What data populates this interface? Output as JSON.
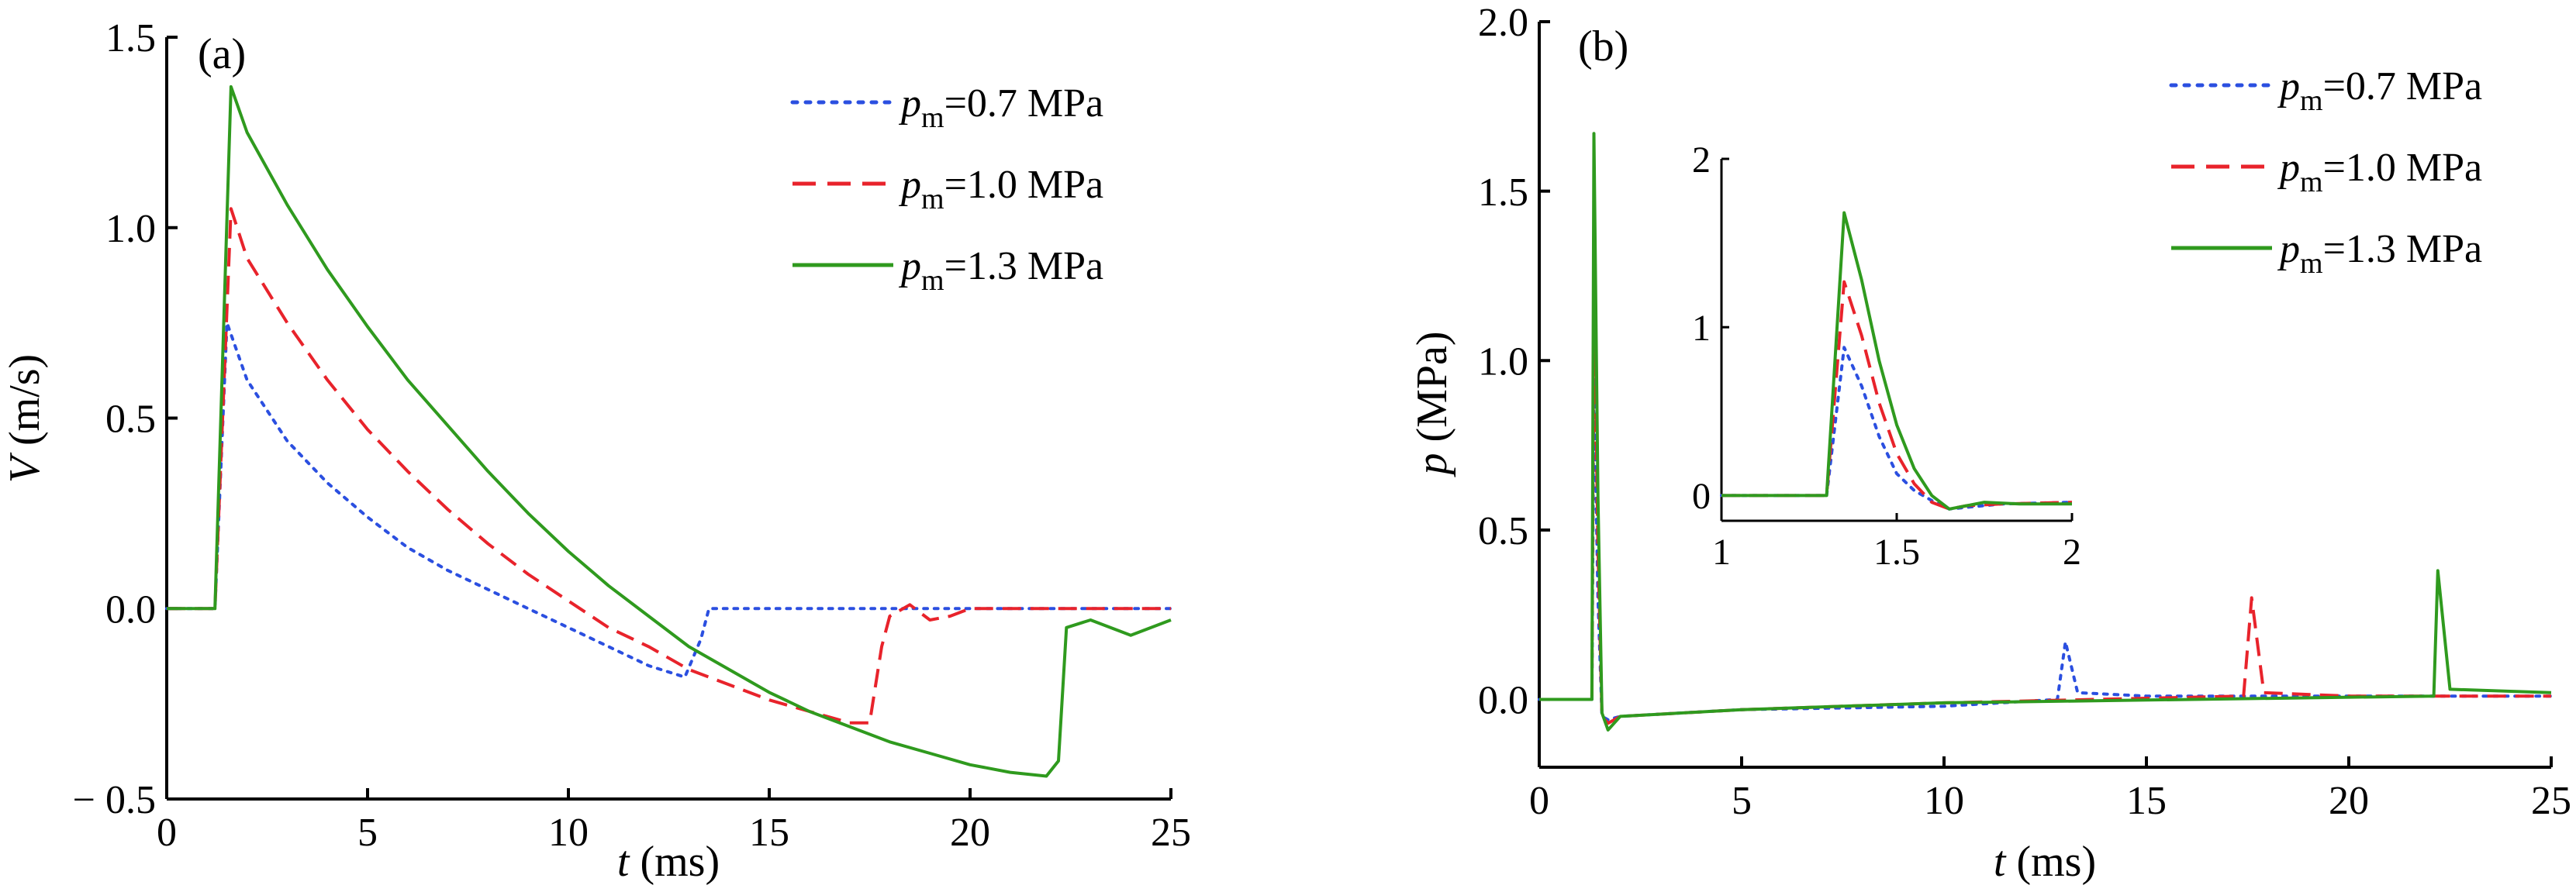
{
  "chart_data": [
    {
      "type": "line",
      "panel_label": "(a)",
      "xlabel": {
        "var": "t",
        "unit": "(ms)"
      },
      "ylabel": {
        "var": "V",
        "unit": "(m/s)"
      },
      "xlim": [
        0,
        25
      ],
      "ylim": [
        -0.5,
        1.5
      ],
      "x_ticks": [
        0,
        5,
        10,
        15,
        20,
        25
      ],
      "x_tick_labels": [
        "0",
        "5",
        "10",
        "15",
        "20",
        "25"
      ],
      "y_ticks": [
        -0.5,
        0.0,
        0.5,
        1.0,
        1.5
      ],
      "y_tick_labels": [
        "− 0.5",
        "0.0",
        "0.5",
        "1.0",
        "1.5"
      ],
      "legend_position": "top-right",
      "series": [
        {
          "name": {
            "var": "p",
            "sub": "m",
            "text": "=0.7 MPa"
          },
          "color": "#2b4fe0",
          "style": "dotted",
          "points": [
            [
              0,
              0
            ],
            [
              1.2,
              0
            ],
            [
              1.5,
              0.75
            ],
            [
              2,
              0.6
            ],
            [
              3,
              0.44
            ],
            [
              4,
              0.33
            ],
            [
              5,
              0.24
            ],
            [
              6,
              0.16
            ],
            [
              7,
              0.1
            ],
            [
              8,
              0.05
            ],
            [
              9,
              0
            ],
            [
              10,
              -0.05
            ],
            [
              11,
              -0.1
            ],
            [
              12,
              -0.15
            ],
            [
              12.9,
              -0.18
            ],
            [
              13.3,
              -0.08
            ],
            [
              13.5,
              0
            ],
            [
              25,
              0
            ]
          ]
        },
        {
          "name": {
            "var": "p",
            "sub": "m",
            "text": "=1.0 MPa"
          },
          "color": "#e8232b",
          "style": "dashed",
          "points": [
            [
              0,
              0
            ],
            [
              1.2,
              0
            ],
            [
              1.6,
              1.05
            ],
            [
              2,
              0.92
            ],
            [
              3,
              0.75
            ],
            [
              4,
              0.6
            ],
            [
              5,
              0.47
            ],
            [
              6,
              0.36
            ],
            [
              7,
              0.26
            ],
            [
              8,
              0.17
            ],
            [
              9,
              0.09
            ],
            [
              10,
              0.02
            ],
            [
              11,
              -0.05
            ],
            [
              12,
              -0.1
            ],
            [
              13,
              -0.16
            ],
            [
              14,
              -0.2
            ],
            [
              15,
              -0.24
            ],
            [
              16,
              -0.27
            ],
            [
              17,
              -0.3
            ],
            [
              17.5,
              -0.3
            ],
            [
              17.8,
              -0.1
            ],
            [
              18,
              -0.02
            ],
            [
              18.5,
              0.01
            ],
            [
              19,
              -0.03
            ],
            [
              19.5,
              -0.02
            ],
            [
              20,
              0
            ],
            [
              25,
              0
            ]
          ]
        },
        {
          "name": {
            "var": "p",
            "sub": "m",
            "text": "=1.3 MPa"
          },
          "color": "#2f9a1e",
          "style": "solid",
          "points": [
            [
              0,
              0
            ],
            [
              1.2,
              0
            ],
            [
              1.6,
              1.37
            ],
            [
              2,
              1.25
            ],
            [
              3,
              1.06
            ],
            [
              4,
              0.89
            ],
            [
              5,
              0.74
            ],
            [
              6,
              0.6
            ],
            [
              7,
              0.48
            ],
            [
              8,
              0.36
            ],
            [
              9,
              0.25
            ],
            [
              10,
              0.15
            ],
            [
              11,
              0.06
            ],
            [
              12,
              -0.02
            ],
            [
              13,
              -0.1
            ],
            [
              14,
              -0.16
            ],
            [
              15,
              -0.22
            ],
            [
              16,
              -0.27
            ],
            [
              17,
              -0.31
            ],
            [
              18,
              -0.35
            ],
            [
              19,
              -0.38
            ],
            [
              20,
              -0.41
            ],
            [
              21,
              -0.43
            ],
            [
              21.9,
              -0.44
            ],
            [
              22.2,
              -0.4
            ],
            [
              22.4,
              -0.05
            ],
            [
              23,
              -0.03
            ],
            [
              24,
              -0.07
            ],
            [
              25,
              -0.03
            ]
          ]
        }
      ]
    },
    {
      "type": "line",
      "panel_label": "(b)",
      "xlabel": {
        "var": "t",
        "unit": "(ms)"
      },
      "ylabel": {
        "var": "p",
        "unit": "(MPa)"
      },
      "xlim": [
        0,
        25
      ],
      "ylim": [
        -0.2,
        2.0
      ],
      "x_ticks": [
        0,
        5,
        10,
        15,
        20,
        25
      ],
      "x_tick_labels": [
        "0",
        "5",
        "10",
        "15",
        "20",
        "25"
      ],
      "y_ticks": [
        0.0,
        0.5,
        1.0,
        1.5,
        2.0
      ],
      "y_tick_labels": [
        "0.0",
        "0.5",
        "1.0",
        "1.5",
        "2.0"
      ],
      "legend_position": "top-right",
      "series": [
        {
          "name": {
            "var": "p",
            "sub": "m",
            "text": "=0.7 MPa"
          },
          "color": "#2b4fe0",
          "style": "dotted",
          "points": [
            [
              0,
              0
            ],
            [
              1.3,
              0
            ],
            [
              1.35,
              0.95
            ],
            [
              1.45,
              0.3
            ],
            [
              1.55,
              -0.05
            ],
            [
              1.7,
              -0.06
            ],
            [
              2,
              -0.05
            ],
            [
              5,
              -0.03
            ],
            [
              10,
              -0.02
            ],
            [
              12.8,
              0
            ],
            [
              13,
              0.17
            ],
            [
              13.3,
              0.02
            ],
            [
              15,
              0.01
            ],
            [
              25,
              0.01
            ]
          ]
        },
        {
          "name": {
            "var": "p",
            "sub": "m",
            "text": "=1.0 MPa"
          },
          "color": "#e8232b",
          "style": "dashed",
          "points": [
            [
              0,
              0
            ],
            [
              1.3,
              0
            ],
            [
              1.35,
              1.25
            ],
            [
              1.45,
              0.45
            ],
            [
              1.55,
              -0.05
            ],
            [
              1.7,
              -0.07
            ],
            [
              2,
              -0.05
            ],
            [
              5,
              -0.03
            ],
            [
              10,
              -0.01
            ],
            [
              17.4,
              0.01
            ],
            [
              17.6,
              0.3
            ],
            [
              17.9,
              0.02
            ],
            [
              20,
              0.01
            ],
            [
              25,
              0.01
            ]
          ]
        },
        {
          "name": {
            "var": "p",
            "sub": "m",
            "text": "=1.3 MPa"
          },
          "color": "#2f9a1e",
          "style": "solid",
          "points": [
            [
              0,
              0
            ],
            [
              1.3,
              0
            ],
            [
              1.35,
              1.67
            ],
            [
              1.45,
              0.6
            ],
            [
              1.55,
              -0.04
            ],
            [
              1.7,
              -0.09
            ],
            [
              2,
              -0.05
            ],
            [
              5,
              -0.03
            ],
            [
              10,
              -0.01
            ],
            [
              22.1,
              0.01
            ],
            [
              22.2,
              0.38
            ],
            [
              22.5,
              0.03
            ],
            [
              25,
              0.02
            ]
          ]
        }
      ],
      "inset": {
        "xlim": [
          1,
          2
        ],
        "ylim": [
          -0.15,
          2
        ],
        "x_ticks": [
          1,
          1.5,
          2
        ],
        "x_tick_labels": [
          "1",
          "1.5",
          "2"
        ],
        "y_ticks": [
          0,
          1,
          2
        ],
        "y_tick_labels": [
          "0",
          "1",
          "2"
        ],
        "series": [
          {
            "color": "#2b4fe0",
            "style": "dotted",
            "points": [
              [
                1,
                0
              ],
              [
                1.3,
                0
              ],
              [
                1.35,
                0.88
              ],
              [
                1.4,
                0.65
              ],
              [
                1.45,
                0.35
              ],
              [
                1.5,
                0.13
              ],
              [
                1.55,
                0.03
              ],
              [
                1.6,
                -0.03
              ],
              [
                1.65,
                -0.08
              ],
              [
                1.7,
                -0.07
              ],
              [
                1.8,
                -0.05
              ],
              [
                2,
                -0.04
              ]
            ]
          },
          {
            "color": "#e8232b",
            "style": "dashed",
            "points": [
              [
                1,
                0
              ],
              [
                1.3,
                0
              ],
              [
                1.35,
                1.27
              ],
              [
                1.4,
                0.95
              ],
              [
                1.45,
                0.55
              ],
              [
                1.5,
                0.25
              ],
              [
                1.55,
                0.07
              ],
              [
                1.6,
                -0.04
              ],
              [
                1.65,
                -0.08
              ],
              [
                1.7,
                -0.06
              ],
              [
                1.8,
                -0.05
              ],
              [
                2,
                -0.04
              ]
            ]
          },
          {
            "color": "#2f9a1e",
            "style": "solid",
            "points": [
              [
                1,
                0
              ],
              [
                1.3,
                0
              ],
              [
                1.35,
                1.68
              ],
              [
                1.4,
                1.28
              ],
              [
                1.45,
                0.8
              ],
              [
                1.5,
                0.42
              ],
              [
                1.55,
                0.16
              ],
              [
                1.6,
                0.0
              ],
              [
                1.65,
                -0.08
              ],
              [
                1.7,
                -0.06
              ],
              [
                1.75,
                -0.04
              ],
              [
                1.85,
                -0.05
              ],
              [
                2,
                -0.05
              ]
            ]
          }
        ]
      }
    }
  ]
}
